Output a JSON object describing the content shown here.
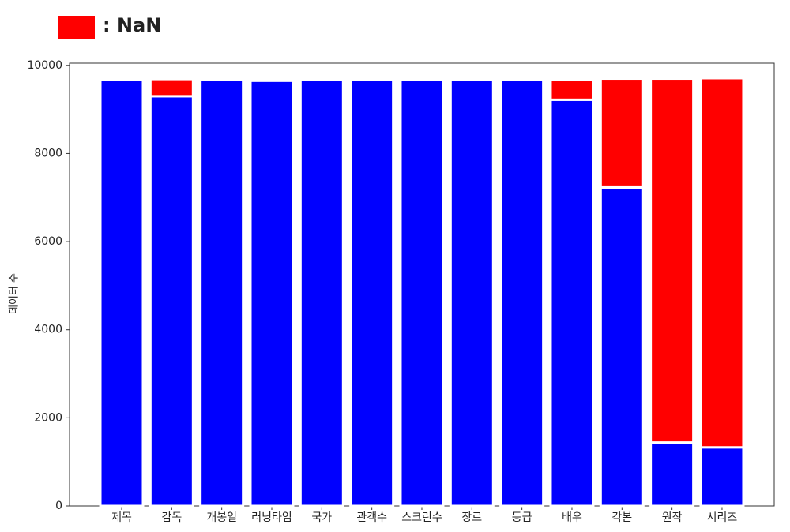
{
  "chart_data": {
    "type": "stacked_bar",
    "y_label": "데이터 수",
    "categories": [
      "제목",
      "감독",
      "개봉일",
      "러닝타임",
      "국가",
      "관객수",
      "스크린수",
      "장르",
      "등급",
      "배우",
      "각본",
      "원작",
      "시리즈"
    ],
    "series": [
      {
        "color": "#0000ff",
        "values": [
          9670,
          9300,
          9670,
          9650,
          9670,
          9670,
          9670,
          9670,
          9670,
          9220,
          7230,
          1440,
          1330
        ]
      },
      {
        "name": ": NaN",
        "color": "#ff0000",
        "values": [
          0,
          390,
          0,
          0,
          0,
          0,
          0,
          0,
          0,
          450,
          2470,
          8260,
          8380
        ]
      }
    ],
    "ylim": [
      0,
      10050
    ],
    "yticks": [
      0,
      2000,
      4000,
      6000,
      8000,
      10000
    ]
  }
}
